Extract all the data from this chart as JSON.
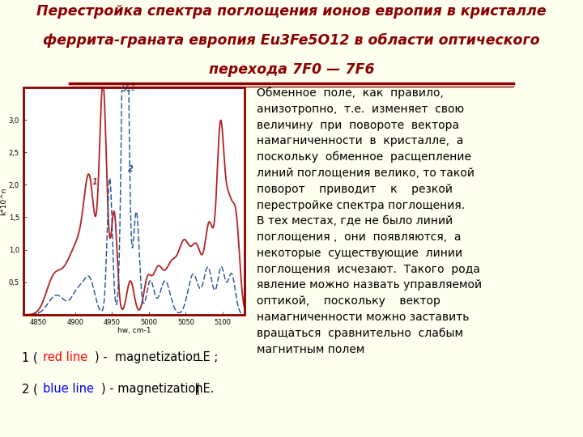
{
  "bg_color": "#FFFFF0",
  "title_line1": "Перестройка спектра поглощения ионов европия в кристалле",
  "title_line2": "феррита-граната европия Eu3Fe5O12 в области оптического",
  "title_line3": "перехода 7F0 — 7F6",
  "title_color": "#8B0000",
  "title_fontsize": 12.5,
  "underline_color": "#8B0000",
  "body_text_lines": [
    "Обменное  поле,  как  правило,",
    "анизотропно,  т.е.  изменяет  свою",
    "величину  при  повороте  вектора",
    "намагниченности  в  кристалле,  а",
    "поскольку  обменное  расщепление",
    "линий поглощения велико, то такой",
    "поворот    приводит    к    резкой",
    "перестройке спектра поглощения.",
    "В тех местах, где не было линий",
    "поглощения ,  они  появляются,  а",
    "некоторые  существующие  линии",
    "поглощения  исчезают.  Такого  рода",
    "явление можно назвать управляемой",
    "оптикой,    поскольку    вектор",
    "намагниченности можно заставить",
    "вращаться  сравнительно  слабым",
    "магнитным полем"
  ],
  "body_fontsize": 10.0,
  "body_color": "#000000",
  "legend_fontsize": 10.5,
  "graph_border_color": "#8B0000",
  "graph_bg": "#FFFFFF",
  "red_line_color": "#B22222",
  "blue_line_color": "#1F4E9A",
  "xmin": 4830,
  "xmax": 5130,
  "ymin": 0,
  "ymax": 3.5,
  "xticks": [
    4850,
    4900,
    4950,
    5000,
    5050,
    5100
  ],
  "yticks": [
    0.5,
    1.0,
    1.5,
    2.0,
    2.5,
    3.0
  ],
  "ytick_labels": [
    "0,5",
    "1,0",
    "1,5",
    "2,0",
    "2,5",
    "3,0"
  ]
}
